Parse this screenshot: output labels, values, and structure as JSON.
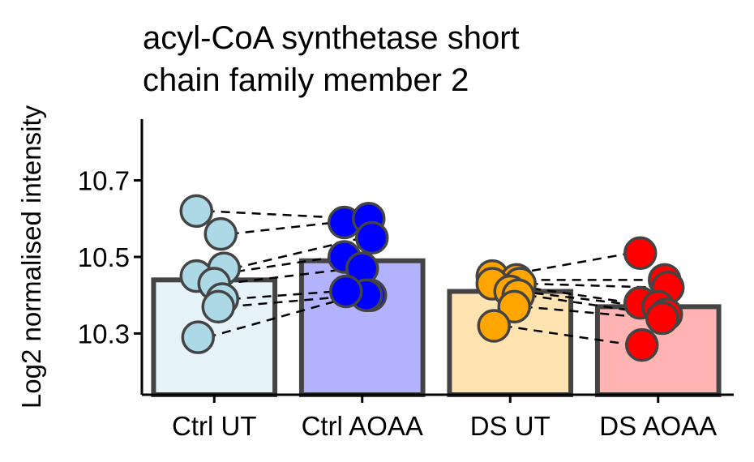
{
  "chart_data": {
    "type": "bar",
    "title_lines": [
      "acyl-CoA synthetase short",
      "chain family member 2"
    ],
    "xlabel": "",
    "ylabel": "Log2 normalised intensity",
    "ylim": [
      10.14,
      10.86
    ],
    "yticks": [
      10.3,
      10.5,
      10.7
    ],
    "ytick_labels": [
      "10.3",
      "10.5",
      "10.7"
    ],
    "grid": false,
    "legend": "none",
    "categories": [
      "Ctrl UT",
      "Ctrl AOAA",
      "DS UT",
      "DS AOAA"
    ],
    "colors": {
      "bar_fill": [
        "#e6f3f9",
        "#b2b2ff",
        "#ffe4b2",
        "#ffb3b3"
      ],
      "point_fill": [
        "#add8e6",
        "#0000ff",
        "#ffa500",
        "#ff0000"
      ],
      "outline": "#444444",
      "pair_line": "#000000"
    },
    "values": [
      10.44,
      10.49,
      10.41,
      10.37
    ],
    "points": [
      [
        10.62,
        10.56,
        10.47,
        10.45,
        10.43,
        10.39,
        10.37,
        10.29
      ],
      [
        10.59,
        10.6,
        10.55,
        10.5,
        10.47,
        10.4,
        10.4,
        10.41
      ],
      [
        10.45,
        10.44,
        10.43,
        10.43,
        10.41,
        10.4,
        10.37,
        10.32
      ],
      [
        10.51,
        10.44,
        10.42,
        10.38,
        10.37,
        10.35,
        10.34,
        10.27
      ]
    ],
    "pairs": [
      [
        0,
        1
      ],
      [
        2,
        3
      ]
    ]
  }
}
